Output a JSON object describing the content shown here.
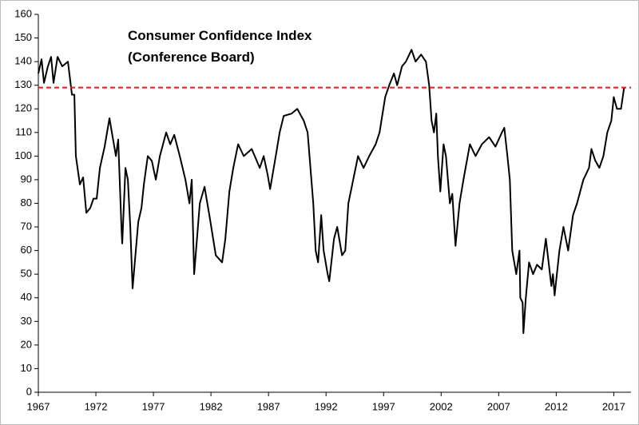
{
  "chart_data": {
    "type": "line",
    "title": "Consumer Confidence Index",
    "subtitle": "(Conference Board)",
    "color": "#000000",
    "x": [
      1967.0,
      1967.28,
      1967.49,
      1967.83,
      1968.11,
      1968.32,
      1968.67,
      1969.08,
      1969.57,
      1969.92,
      1970.13,
      1970.26,
      1970.61,
      1970.89,
      1971.17,
      1971.51,
      1971.79,
      1972.07,
      1972.35,
      1972.76,
      1972.97,
      1973.18,
      1973.46,
      1973.74,
      1973.94,
      1974.22,
      1974.29,
      1974.57,
      1974.78,
      1974.99,
      1975.19,
      1975.47,
      1975.68,
      1975.96,
      1976.17,
      1976.51,
      1976.86,
      1977.21,
      1977.56,
      1978.11,
      1978.46,
      1978.81,
      1979.29,
      1979.78,
      1980.13,
      1980.33,
      1980.54,
      1981.03,
      1981.44,
      1981.86,
      1982.42,
      1982.97,
      1983.25,
      1983.6,
      1983.94,
      1984.36,
      1984.85,
      1985.54,
      1986.24,
      1986.58,
      1986.93,
      1987.14,
      1987.63,
      1987.97,
      1988.32,
      1989.01,
      1989.5,
      1990.06,
      1990.4,
      1990.89,
      1991.1,
      1991.31,
      1991.58,
      1991.79,
      1992.14,
      1992.28,
      1992.69,
      1992.97,
      1993.39,
      1993.67,
      1993.94,
      1994.36,
      1994.78,
      1995.26,
      1995.75,
      1996.31,
      1996.65,
      1997.14,
      1997.49,
      1997.9,
      1998.18,
      1998.6,
      1998.94,
      1999.43,
      1999.78,
      2000.26,
      2000.68,
      2000.96,
      2001.17,
      2001.38,
      2001.58,
      2001.72,
      2001.93,
      2002.21,
      2002.42,
      2002.76,
      2002.97,
      2003.25,
      2003.6,
      2003.94,
      2004.5,
      2004.99,
      2005.54,
      2006.17,
      2006.72,
      2007.28,
      2007.49,
      2007.76,
      2007.97,
      2008.18,
      2008.53,
      2008.81,
      2008.88,
      2009.08,
      2009.15,
      2009.36,
      2009.64,
      2009.99,
      2010.33,
      2010.75,
      2011.1,
      2011.58,
      2011.72,
      2011.86,
      2012.28,
      2012.63,
      2013.04,
      2013.46,
      2013.81,
      2014.36,
      2014.85,
      2015.06,
      2015.4,
      2015.75,
      2016.1,
      2016.44,
      2016.79,
      2017.0,
      2017.28,
      2017.63,
      2017.9
    ],
    "values": [
      135,
      141,
      131,
      138,
      142,
      131,
      142,
      138,
      140,
      126,
      126,
      100,
      88,
      91,
      76,
      78,
      82,
      82,
      95,
      104,
      110,
      116,
      108,
      100,
      107,
      70,
      63,
      95,
      90,
      70,
      44,
      60,
      72,
      78,
      88,
      100,
      98,
      90,
      100,
      110,
      105,
      109,
      100,
      90,
      80,
      90,
      50,
      80,
      87,
      75,
      58,
      55,
      65,
      85,
      95,
      105,
      100,
      103,
      95,
      100,
      92,
      86,
      100,
      110,
      117,
      118,
      120,
      115,
      110,
      80,
      60,
      55,
      75,
      60,
      50,
      47,
      65,
      70,
      58,
      60,
      80,
      90,
      100,
      95,
      100,
      105,
      110,
      125,
      130,
      135,
      130,
      138,
      140,
      145,
      140,
      143,
      140,
      130,
      115,
      110,
      118,
      100,
      85,
      105,
      100,
      80,
      84,
      62,
      80,
      90,
      105,
      100,
      105,
      108,
      104,
      110,
      112,
      100,
      90,
      60,
      50,
      60,
      40,
      38,
      25,
      40,
      55,
      50,
      54,
      52,
      65,
      45,
      50,
      41,
      60,
      70,
      60,
      75,
      80,
      90,
      95,
      103,
      98,
      95,
      100,
      110,
      115,
      125,
      120,
      120,
      129
    ],
    "reference_lines": [
      {
        "value": 129,
        "color": "#e41a1c",
        "dashed": true
      }
    ],
    "xlim": [
      1967,
      2018.5
    ],
    "xticks": [
      1967,
      1972,
      1977,
      1982,
      1987,
      1992,
      1997,
      2002,
      2007,
      2012,
      2017
    ],
    "ylim": [
      0,
      160
    ],
    "yticks": [
      0,
      10,
      20,
      30,
      40,
      50,
      60,
      70,
      80,
      90,
      100,
      110,
      120,
      130,
      140,
      150,
      160
    ],
    "grid": false
  }
}
